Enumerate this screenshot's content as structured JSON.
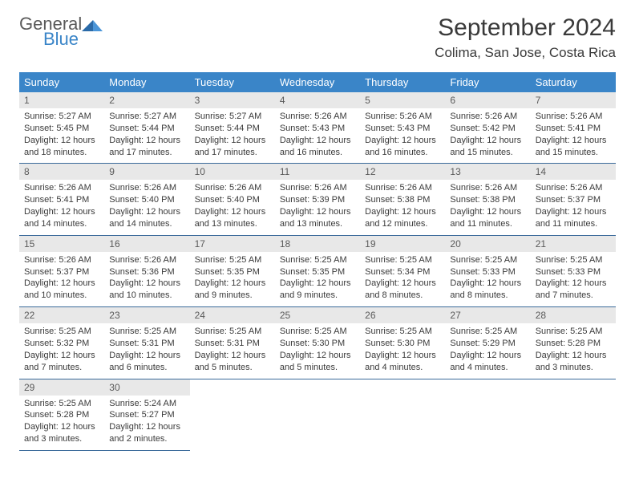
{
  "logo": {
    "word1": "General",
    "word2": "Blue"
  },
  "title": "September 2024",
  "location": "Colima, San Jose, Costa Rica",
  "colors": {
    "header_bg": "#3a85c8",
    "header_fg": "#ffffff",
    "daynum_bg": "#e8e8e8",
    "daynum_fg": "#5a5a5a",
    "text": "#3a3a3a",
    "rule": "#3a6a9a",
    "logo_gray": "#5a5a5a",
    "logo_blue": "#3a85c8"
  },
  "weekdays": [
    "Sunday",
    "Monday",
    "Tuesday",
    "Wednesday",
    "Thursday",
    "Friday",
    "Saturday"
  ],
  "days": [
    {
      "n": "1",
      "sr": "5:27 AM",
      "ss": "5:45 PM",
      "dl": "12 hours and 18 minutes."
    },
    {
      "n": "2",
      "sr": "5:27 AM",
      "ss": "5:44 PM",
      "dl": "12 hours and 17 minutes."
    },
    {
      "n": "3",
      "sr": "5:27 AM",
      "ss": "5:44 PM",
      "dl": "12 hours and 17 minutes."
    },
    {
      "n": "4",
      "sr": "5:26 AM",
      "ss": "5:43 PM",
      "dl": "12 hours and 16 minutes."
    },
    {
      "n": "5",
      "sr": "5:26 AM",
      "ss": "5:43 PM",
      "dl": "12 hours and 16 minutes."
    },
    {
      "n": "6",
      "sr": "5:26 AM",
      "ss": "5:42 PM",
      "dl": "12 hours and 15 minutes."
    },
    {
      "n": "7",
      "sr": "5:26 AM",
      "ss": "5:41 PM",
      "dl": "12 hours and 15 minutes."
    },
    {
      "n": "8",
      "sr": "5:26 AM",
      "ss": "5:41 PM",
      "dl": "12 hours and 14 minutes."
    },
    {
      "n": "9",
      "sr": "5:26 AM",
      "ss": "5:40 PM",
      "dl": "12 hours and 14 minutes."
    },
    {
      "n": "10",
      "sr": "5:26 AM",
      "ss": "5:40 PM",
      "dl": "12 hours and 13 minutes."
    },
    {
      "n": "11",
      "sr": "5:26 AM",
      "ss": "5:39 PM",
      "dl": "12 hours and 13 minutes."
    },
    {
      "n": "12",
      "sr": "5:26 AM",
      "ss": "5:38 PM",
      "dl": "12 hours and 12 minutes."
    },
    {
      "n": "13",
      "sr": "5:26 AM",
      "ss": "5:38 PM",
      "dl": "12 hours and 11 minutes."
    },
    {
      "n": "14",
      "sr": "5:26 AM",
      "ss": "5:37 PM",
      "dl": "12 hours and 11 minutes."
    },
    {
      "n": "15",
      "sr": "5:26 AM",
      "ss": "5:37 PM",
      "dl": "12 hours and 10 minutes."
    },
    {
      "n": "16",
      "sr": "5:26 AM",
      "ss": "5:36 PM",
      "dl": "12 hours and 10 minutes."
    },
    {
      "n": "17",
      "sr": "5:25 AM",
      "ss": "5:35 PM",
      "dl": "12 hours and 9 minutes."
    },
    {
      "n": "18",
      "sr": "5:25 AM",
      "ss": "5:35 PM",
      "dl": "12 hours and 9 minutes."
    },
    {
      "n": "19",
      "sr": "5:25 AM",
      "ss": "5:34 PM",
      "dl": "12 hours and 8 minutes."
    },
    {
      "n": "20",
      "sr": "5:25 AM",
      "ss": "5:33 PM",
      "dl": "12 hours and 8 minutes."
    },
    {
      "n": "21",
      "sr": "5:25 AM",
      "ss": "5:33 PM",
      "dl": "12 hours and 7 minutes."
    },
    {
      "n": "22",
      "sr": "5:25 AM",
      "ss": "5:32 PM",
      "dl": "12 hours and 7 minutes."
    },
    {
      "n": "23",
      "sr": "5:25 AM",
      "ss": "5:31 PM",
      "dl": "12 hours and 6 minutes."
    },
    {
      "n": "24",
      "sr": "5:25 AM",
      "ss": "5:31 PM",
      "dl": "12 hours and 5 minutes."
    },
    {
      "n": "25",
      "sr": "5:25 AM",
      "ss": "5:30 PM",
      "dl": "12 hours and 5 minutes."
    },
    {
      "n": "26",
      "sr": "5:25 AM",
      "ss": "5:30 PM",
      "dl": "12 hours and 4 minutes."
    },
    {
      "n": "27",
      "sr": "5:25 AM",
      "ss": "5:29 PM",
      "dl": "12 hours and 4 minutes."
    },
    {
      "n": "28",
      "sr": "5:25 AM",
      "ss": "5:28 PM",
      "dl": "12 hours and 3 minutes."
    },
    {
      "n": "29",
      "sr": "5:25 AM",
      "ss": "5:28 PM",
      "dl": "12 hours and 3 minutes."
    },
    {
      "n": "30",
      "sr": "5:24 AM",
      "ss": "5:27 PM",
      "dl": "12 hours and 2 minutes."
    }
  ],
  "labels": {
    "sunrise": "Sunrise:",
    "sunset": "Sunset:",
    "daylight": "Daylight:"
  },
  "layout": {
    "cols": 7,
    "rows": 5,
    "leading_blanks": 0,
    "trailing_blanks": 5
  }
}
